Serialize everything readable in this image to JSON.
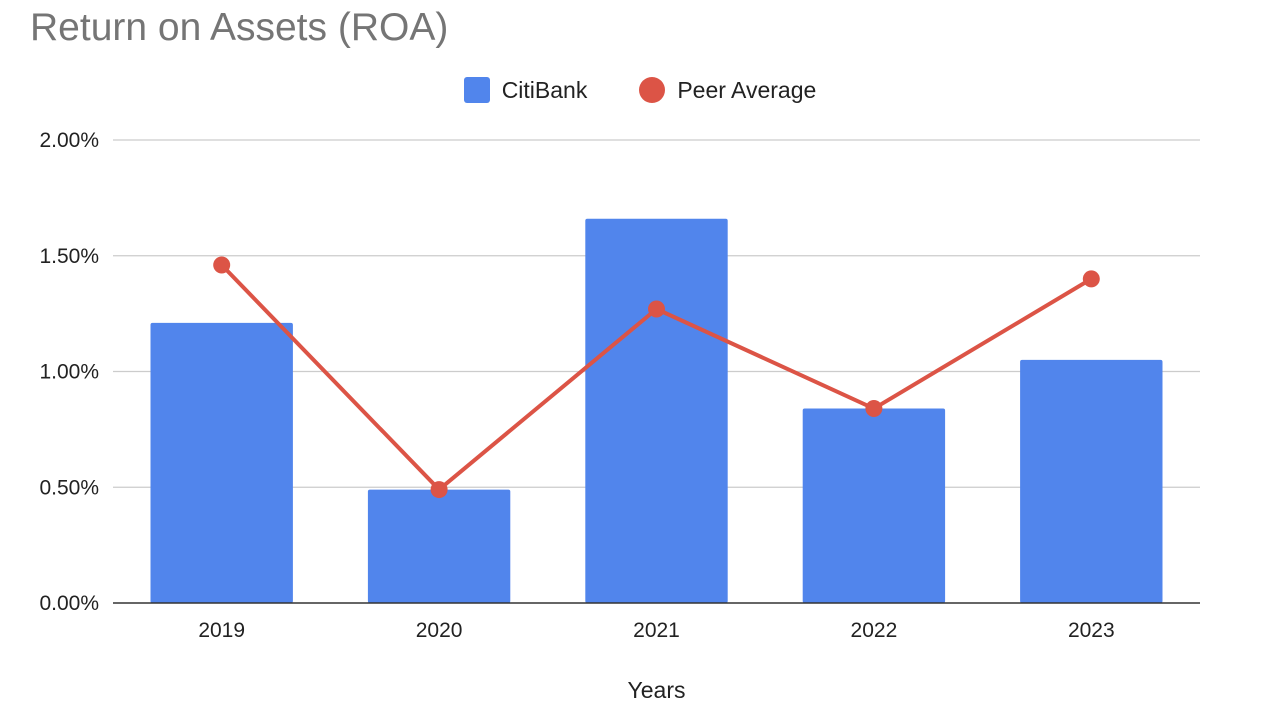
{
  "chart_data": {
    "type": "bar",
    "title": "Return on Assets (ROA)",
    "xlabel": "Years",
    "ylabel": "",
    "categories": [
      "2019",
      "2020",
      "2021",
      "2022",
      "2023"
    ],
    "series": [
      {
        "name": "CitiBank",
        "type": "bar",
        "color": "#5185EC",
        "values": [
          0.0121,
          0.0049,
          0.0166,
          0.0084,
          0.0105
        ]
      },
      {
        "name": "Peer Average",
        "type": "line",
        "color": "#DC5446",
        "values": [
          0.0146,
          0.0049,
          0.0127,
          0.0084,
          0.014
        ]
      }
    ],
    "ylim": [
      0,
      0.02
    ],
    "yticks": [
      0,
      0.005,
      0.01,
      0.015,
      0.02
    ],
    "ytick_labels": [
      "0.00%",
      "0.50%",
      "1.00%",
      "1.50%",
      "2.00%"
    ],
    "grid": true,
    "legend_position": "top-center"
  }
}
